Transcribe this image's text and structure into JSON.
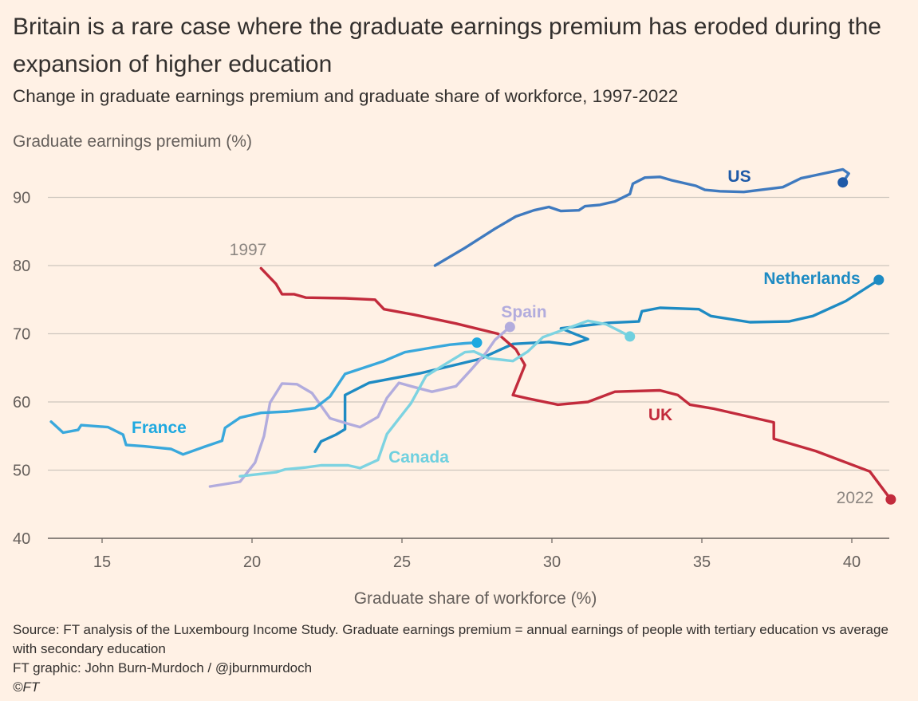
{
  "header": {
    "title": "Britain is a rare case where the graduate earnings premium has eroded during the expansion of higher education",
    "subtitle": "Change in graduate earnings premium and graduate share of workforce, 1997-2022"
  },
  "footer": {
    "source": "Source: FT analysis of the Luxembourg Income Study. Graduate earnings premium = annual earnings of people with tertiary education vs average with secondary education",
    "credit": "FT graphic: John Burn-Murdoch / @jburnmurdoch",
    "copyright": "©FT"
  },
  "chart_data": {
    "type": "line",
    "title": "Britain is a rare case where the graduate earnings premium has eroded during the expansion of higher education",
    "subtitle": "Change in graduate earnings premium and graduate share of workforce, 1997-2022",
    "xlabel": "Graduate share of workforce (%)",
    "ylabel": "Graduate earnings premium (%)",
    "xlim": [
      13.3,
      41.4
    ],
    "ylim": [
      40,
      95
    ],
    "x_ticks": [
      15,
      20,
      25,
      30,
      35,
      40
    ],
    "y_ticks": [
      40,
      50,
      60,
      70,
      80,
      90
    ],
    "grid": "horizontal",
    "legend": "direct labels",
    "annotations": [
      {
        "text": "1997",
        "series": "UK",
        "at": "start"
      },
      {
        "text": "2022",
        "series": "UK",
        "at": "end"
      }
    ],
    "series": [
      {
        "name": "US",
        "color": "#3F7ABF",
        "end_color": "#1E5AA8",
        "points": [
          [
            26.1,
            80
          ],
          [
            27.1,
            82.6
          ],
          [
            28.1,
            85.4
          ],
          [
            28.8,
            87.2
          ],
          [
            29.4,
            88.1
          ],
          [
            29.9,
            88.6
          ],
          [
            30.3,
            88
          ],
          [
            30.9,
            88.1
          ],
          [
            31.1,
            88.7
          ],
          [
            31.6,
            88.9
          ],
          [
            32.1,
            89.4
          ],
          [
            32.6,
            90.5
          ],
          [
            32.7,
            92
          ],
          [
            33.1,
            92.9
          ],
          [
            33.6,
            93
          ],
          [
            34,
            92.5
          ],
          [
            34.8,
            91.7
          ],
          [
            35.1,
            91.1
          ],
          [
            35.6,
            90.9
          ],
          [
            36.4,
            90.8
          ],
          [
            37.7,
            91.5
          ],
          [
            38.3,
            92.8
          ],
          [
            39.7,
            94.1
          ],
          [
            39.9,
            93.5
          ],
          [
            39.7,
            92.2
          ]
        ]
      },
      {
        "name": "Netherlands",
        "color": "#1E8BC3",
        "end_color": "#1E8BC3",
        "points": [
          [
            22.1,
            52.7
          ],
          [
            22.3,
            54.2
          ],
          [
            22.8,
            55.2
          ],
          [
            23.1,
            56
          ],
          [
            23.1,
            61
          ],
          [
            23.9,
            62.8
          ],
          [
            25.6,
            64.2
          ],
          [
            27.6,
            66.3
          ],
          [
            28.7,
            68.5
          ],
          [
            29.9,
            68.8
          ],
          [
            30.6,
            68.4
          ],
          [
            31.2,
            69.2
          ],
          [
            30.3,
            70.8
          ],
          [
            31.9,
            71.6
          ],
          [
            32.9,
            71.8
          ],
          [
            33,
            73.3
          ],
          [
            33.6,
            73.8
          ],
          [
            34.9,
            73.6
          ],
          [
            35.3,
            72.6
          ],
          [
            36.6,
            71.7
          ],
          [
            37.9,
            71.8
          ],
          [
            38.7,
            72.6
          ],
          [
            39.8,
            74.8
          ],
          [
            40.9,
            77.9
          ]
        ]
      },
      {
        "name": "UK",
        "color": "#C22B3C",
        "end_color": "#C22B3C",
        "points": [
          [
            20.3,
            79.6
          ],
          [
            20.8,
            77.3
          ],
          [
            21.0,
            75.8
          ],
          [
            21.4,
            75.8
          ],
          [
            21.8,
            75.3
          ],
          [
            23.1,
            75.2
          ],
          [
            24.1,
            75
          ],
          [
            24.4,
            73.6
          ],
          [
            25.4,
            72.8
          ],
          [
            26.8,
            71.5
          ],
          [
            28.2,
            70
          ],
          [
            28.8,
            67.7
          ],
          [
            29.1,
            65.4
          ],
          [
            28.7,
            61
          ],
          [
            29.2,
            60.5
          ],
          [
            30.2,
            59.6
          ],
          [
            31.2,
            60
          ],
          [
            32.1,
            61.5
          ],
          [
            33.6,
            61.7
          ],
          [
            34.2,
            61
          ],
          [
            34.6,
            59.6
          ],
          [
            35.4,
            59
          ],
          [
            37.4,
            57
          ],
          [
            37.4,
            54.6
          ],
          [
            38.8,
            52.8
          ],
          [
            40.6,
            49.8
          ],
          [
            41.3,
            45.7
          ]
        ]
      },
      {
        "name": "Spain",
        "color": "#B2ACDD",
        "end_color": "#B2ACDD",
        "points": [
          [
            18.6,
            47.6
          ],
          [
            19.6,
            48.3
          ],
          [
            20.1,
            51.1
          ],
          [
            20.4,
            55
          ],
          [
            20.6,
            59.9
          ],
          [
            21.0,
            62.7
          ],
          [
            21.5,
            62.6
          ],
          [
            22.0,
            61.3
          ],
          [
            22.6,
            57.6
          ],
          [
            23.2,
            56.8
          ],
          [
            23.6,
            56.3
          ],
          [
            24.2,
            57.8
          ],
          [
            24.5,
            60.6
          ],
          [
            24.9,
            62.8
          ],
          [
            25.3,
            62.3
          ],
          [
            26.0,
            61.5
          ],
          [
            26.8,
            62.3
          ],
          [
            27.3,
            64.7
          ],
          [
            27.8,
            67.2
          ],
          [
            28.1,
            69.1
          ],
          [
            28.6,
            71
          ]
        ]
      },
      {
        "name": "France",
        "color": "#39A8DC",
        "end_color": "#1FA9E0",
        "points": [
          [
            13.3,
            57.1
          ],
          [
            13.7,
            55.5
          ],
          [
            14.2,
            55.9
          ],
          [
            14.3,
            56.6
          ],
          [
            15.2,
            56.3
          ],
          [
            15.7,
            55.2
          ],
          [
            15.8,
            53.7
          ],
          [
            16.4,
            53.5
          ],
          [
            17.3,
            53.1
          ],
          [
            17.7,
            52.3
          ],
          [
            18.4,
            53.4
          ],
          [
            19.0,
            54.3
          ],
          [
            19.1,
            56.2
          ],
          [
            19.6,
            57.7
          ],
          [
            20.3,
            58.4
          ],
          [
            21.2,
            58.6
          ],
          [
            22.1,
            59.1
          ],
          [
            22.6,
            60.8
          ],
          [
            23.1,
            64.1
          ],
          [
            24.4,
            66
          ],
          [
            25.1,
            67.3
          ],
          [
            25.9,
            67.9
          ],
          [
            26.6,
            68.4
          ],
          [
            27.1,
            68.6
          ],
          [
            27.5,
            68.7
          ]
        ]
      },
      {
        "name": "Canada",
        "color": "#7DD3E1",
        "end_color": "#6FD0DF",
        "points": [
          [
            19.6,
            49.1
          ],
          [
            20.4,
            49.5
          ],
          [
            20.8,
            49.7
          ],
          [
            21.1,
            50.1
          ],
          [
            21.8,
            50.4
          ],
          [
            22.3,
            50.7
          ],
          [
            23.2,
            50.7
          ],
          [
            23.6,
            50.3
          ],
          [
            24.2,
            51.5
          ],
          [
            24.5,
            55.3
          ],
          [
            25.3,
            59.8
          ],
          [
            25.8,
            63.8
          ],
          [
            26.5,
            65.7
          ],
          [
            27.1,
            67.3
          ],
          [
            27.4,
            67.4
          ],
          [
            27.9,
            66.4
          ],
          [
            28.7,
            66
          ],
          [
            29.2,
            67.4
          ],
          [
            29.7,
            69.5
          ],
          [
            31.2,
            71.9
          ],
          [
            31.8,
            71.4
          ],
          [
            32.3,
            70.3
          ],
          [
            32.6,
            69.6
          ]
        ]
      }
    ]
  }
}
